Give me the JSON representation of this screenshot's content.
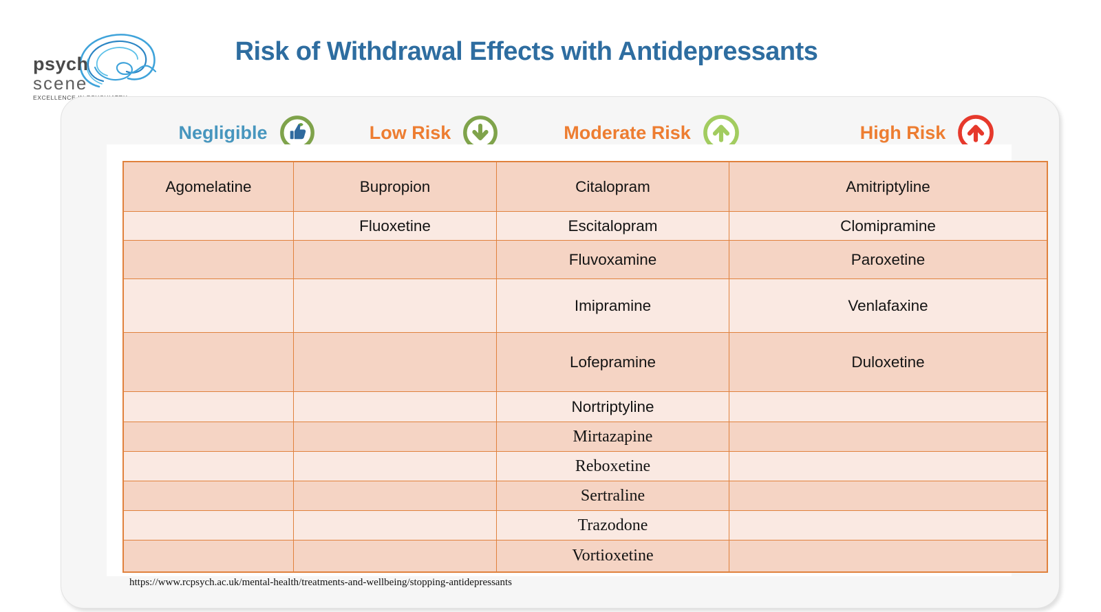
{
  "logo": {
    "name1": "psych",
    "name2": "scene",
    "tagline": "EXCELLENCE IN PSYCHIATRY"
  },
  "title": "Risk of Withdrawal Effects with Antidepressants",
  "header": {
    "categories": [
      {
        "label": "Negligible",
        "icon": "thumbs-up-icon",
        "icon_color": "#7FA34B",
        "label_color": "#4796BE"
      },
      {
        "label": "Low Risk",
        "icon": "arrow-down-icon",
        "icon_color": "#7FA34B",
        "label_color": "#ED7D31"
      },
      {
        "label": "Moderate Risk",
        "icon": "arrow-up-icon",
        "icon_color": "#A2CC60",
        "label_color": "#ED7D31"
      },
      {
        "label": "High Risk",
        "icon": "arrow-up-icon",
        "icon_color": "#E6392C",
        "label_color": "#ED7D31"
      }
    ]
  },
  "table": {
    "columns": [
      "Negligible",
      "Low Risk",
      "Moderate Risk",
      "High Risk"
    ],
    "rows": [
      [
        "Agomelatine",
        "Bupropion",
        "Citalopram",
        "Amitriptyline"
      ],
      [
        "",
        "Fluoxetine",
        "Escitalopram",
        "Clomipramine"
      ],
      [
        "",
        "",
        "Fluvoxamine",
        "Paroxetine"
      ],
      [
        "",
        "",
        "Imipramine",
        "Venlafaxine"
      ],
      [
        "",
        "",
        "Lofepramine",
        "Duloxetine"
      ],
      [
        "",
        "",
        "Nortriptyline",
        ""
      ],
      [
        "",
        "",
        "Mirtazapine",
        ""
      ],
      [
        "",
        "",
        "Reboxetine",
        ""
      ],
      [
        "",
        "",
        "Sertraline",
        ""
      ],
      [
        "",
        "",
        "Trazodone",
        ""
      ],
      [
        "",
        "",
        "Vortioxetine",
        ""
      ]
    ]
  },
  "source_url": "https://www.rcpsych.ac.uk/mental-health/treatments-and-wellbeing/stopping-antidepressants",
  "colors": {
    "title": "#2E6DA0",
    "negligible_label": "#4796BE",
    "risk_label_orange": "#ED7D31",
    "table_border": "#E0813C",
    "row_dark": "#F5D4C4",
    "row_light": "#FAE9E2",
    "icon_olive_green": "#7FA34B",
    "icon_bright_green": "#A2CC60",
    "icon_red": "#E6392C",
    "thumb_blue": "#2F6A9E"
  }
}
